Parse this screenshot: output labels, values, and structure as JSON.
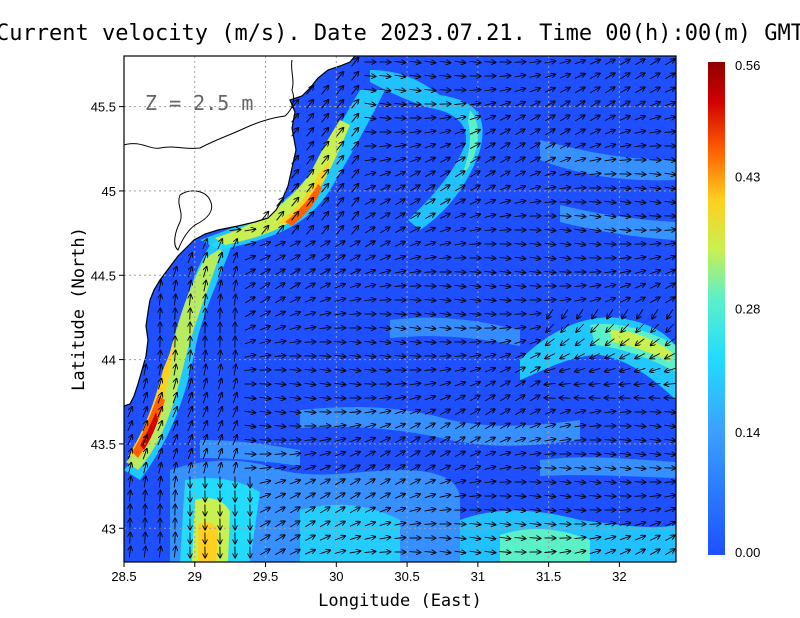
{
  "title": "Current velocity (m/s). Date 2023.07.21. Time 00(h):00(m) GMT",
  "depth_label": "Z = 2.5 m",
  "colorbar": {
    "ticks": [
      "0.56",
      "0.43",
      "0.28",
      "0.14",
      "0.00"
    ],
    "min": 0.0,
    "max": 0.56,
    "colors": [
      "#1e50ff",
      "#3ca0ff",
      "#22dcff",
      "#5cf0c8",
      "#c8f050",
      "#ffd020",
      "#ff6000",
      "#d00000",
      "#900000"
    ]
  },
  "chart_data": {
    "type": "heatmap",
    "title": "Current velocity (m/s). Date 2023.07.21. Time 00(h):00(m) GMT",
    "xlabel": "Longitude (East)",
    "ylabel": "Latitude (North)",
    "xlim": [
      28.5,
      32.4
    ],
    "ylim": [
      42.8,
      45.8
    ],
    "x_ticks": [
      "28.5",
      "29",
      "29.5",
      "30",
      "30.5",
      "31",
      "31.5",
      "32"
    ],
    "y_ticks": [
      "45.5",
      "45",
      "44.5",
      "44",
      "43.5",
      "43"
    ],
    "x_tick_values": [
      28.5,
      29,
      29.5,
      30,
      30.5,
      31,
      31.5,
      32
    ],
    "y_tick_values": [
      45.5,
      45,
      44.5,
      44,
      43.5,
      43
    ],
    "grid": true,
    "colorbar_range": [
      0.0,
      0.56
    ],
    "annotation": "Z = 2.5 m",
    "high_speed_features": [
      {
        "name": "coastal jet south",
        "lon": 28.7,
        "lat": 43.6,
        "speed": 0.56
      },
      {
        "name": "coastal jet north",
        "lon": 29.7,
        "lat": 44.85,
        "speed": 0.43
      },
      {
        "name": "eddy east",
        "lon": 32.0,
        "lat": 44.05,
        "speed": 0.3
      },
      {
        "name": "south jet",
        "lon": 29.1,
        "lat": 42.9,
        "speed": 0.45
      }
    ]
  },
  "axis": {
    "xlabel": "Longitude (East)",
    "ylabel": "Latitude (North)"
  }
}
